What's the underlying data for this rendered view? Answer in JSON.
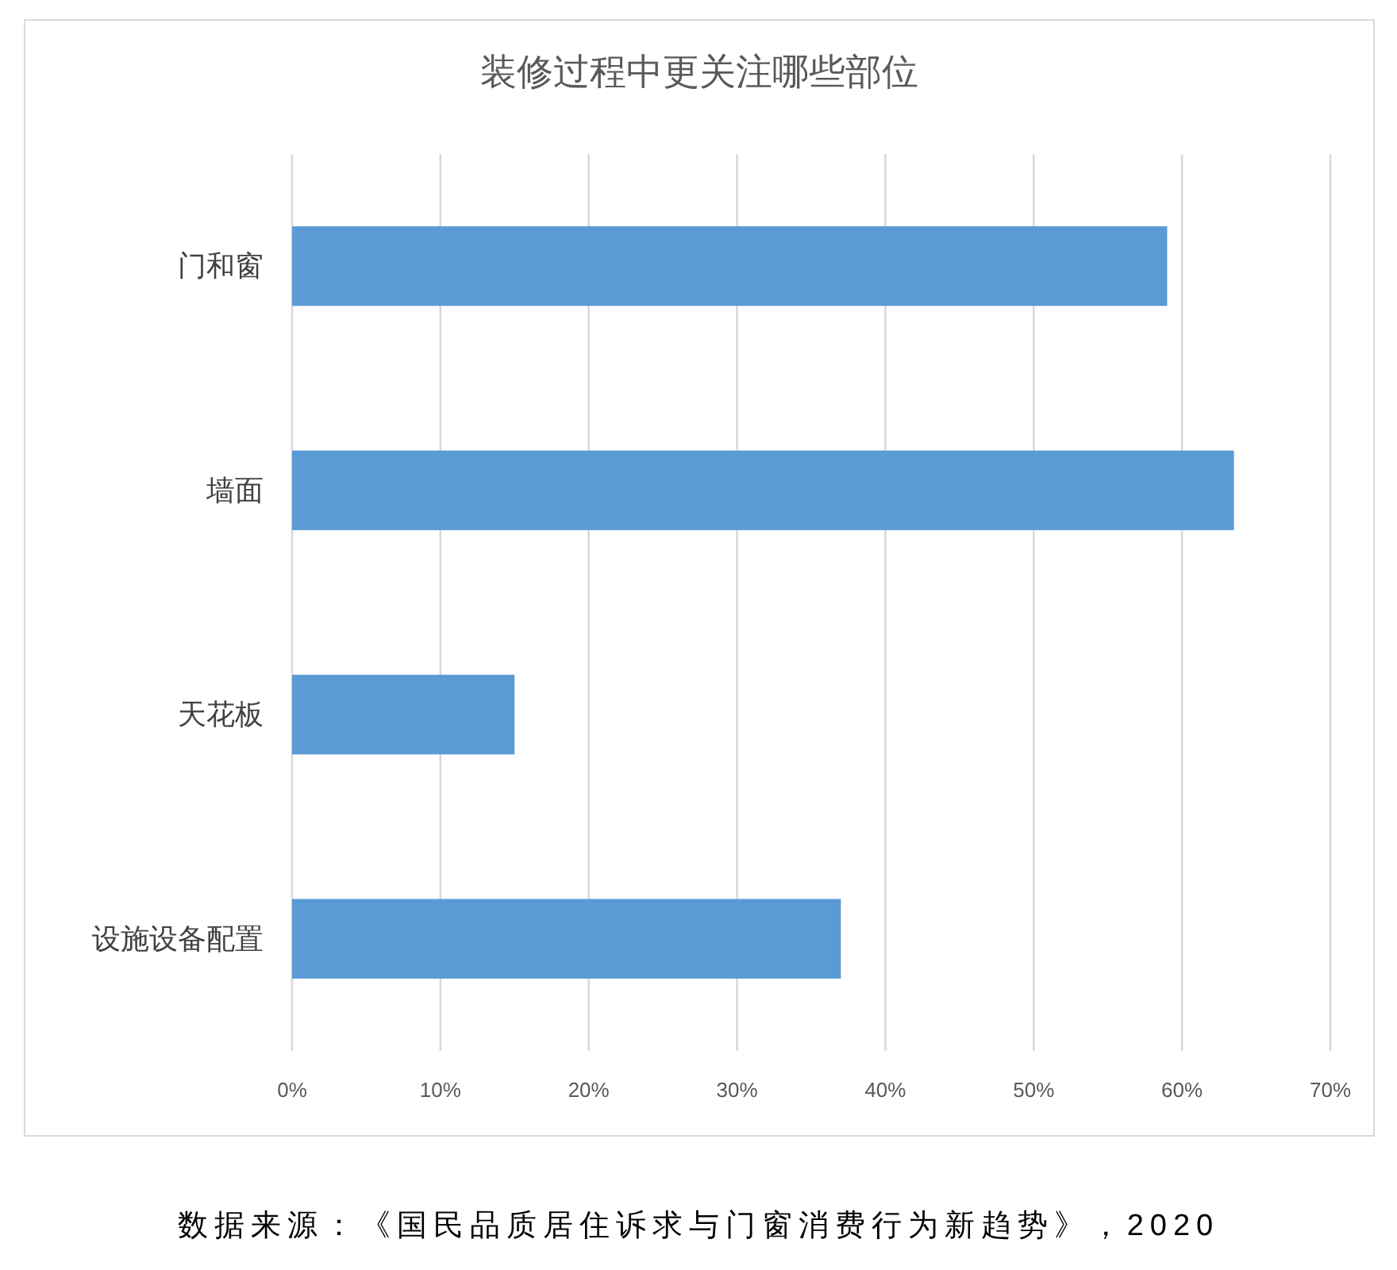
{
  "chart_data": {
    "type": "bar",
    "orientation": "horizontal",
    "title": "装修过程中更关注哪些部位",
    "categories": [
      "门和窗",
      "墙面",
      "天花板",
      "设施设备配置"
    ],
    "values": [
      59,
      63.5,
      15,
      37
    ],
    "color": "#5b9bd5",
    "xlim": [
      0,
      70
    ],
    "xticks": [
      {
        "value": 0,
        "label": "0%"
      },
      {
        "value": 10,
        "label": "10%"
      },
      {
        "value": 20,
        "label": "20%"
      },
      {
        "value": 30,
        "label": "30%"
      },
      {
        "value": 40,
        "label": "40%"
      },
      {
        "value": 50,
        "label": "50%"
      },
      {
        "value": 60,
        "label": "60%"
      },
      {
        "value": 70,
        "label": "70%"
      }
    ],
    "grid": "x",
    "annotations": [
      "数据来源：《国民品质居住诉求与门窗消费行为新趋势》，2020"
    ]
  }
}
